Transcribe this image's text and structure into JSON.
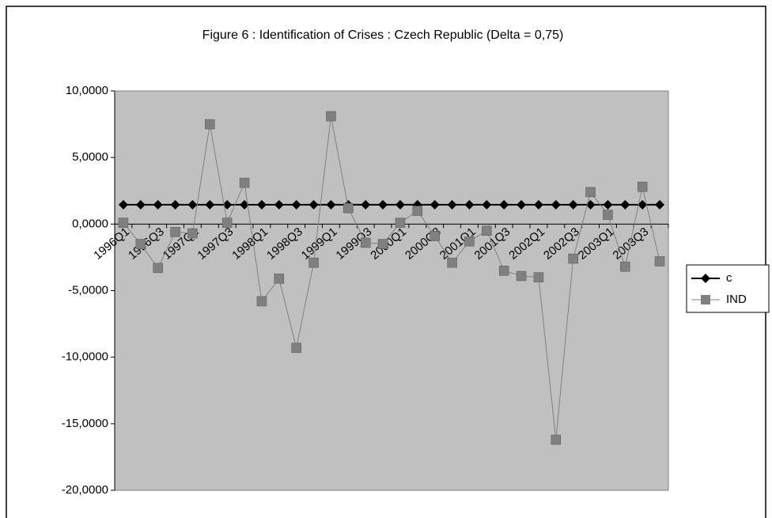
{
  "chart_data": {
    "type": "line",
    "title": "Figure 6 : Identification of Crises : Czech Republic (Delta = 0,75)",
    "categories": [
      "1996Q1",
      null,
      "1996Q3",
      null,
      "1997Q1",
      null,
      "1997Q3",
      null,
      "1998Q1",
      null,
      "1998Q3",
      null,
      "1999Q1",
      null,
      "1999Q3",
      null,
      "2000Q1",
      null,
      "2000Q3",
      null,
      "2001Q1",
      null,
      "2001Q3",
      null,
      "2002Q1",
      null,
      "2002Q3",
      null,
      "2003Q1",
      null,
      "2003Q3",
      null
    ],
    "series": [
      {
        "name": "c",
        "color": "#000000",
        "marker": "diamond",
        "values": [
          1.45,
          1.45,
          1.45,
          1.45,
          1.45,
          1.45,
          1.45,
          1.45,
          1.45,
          1.45,
          1.45,
          1.45,
          1.45,
          1.45,
          1.45,
          1.45,
          1.45,
          1.45,
          1.45,
          1.45,
          1.45,
          1.45,
          1.45,
          1.45,
          1.45,
          1.45,
          1.45,
          1.45,
          1.45,
          1.45,
          1.45,
          1.45
        ]
      },
      {
        "name": "IND",
        "color": "#808080",
        "marker": "square",
        "values": [
          0.1,
          -1.5,
          -3.3,
          -0.6,
          -0.7,
          7.5,
          0.1,
          3.1,
          -5.8,
          -4.1,
          -9.3,
          -2.9,
          8.1,
          1.2,
          -1.4,
          -1.5,
          0.1,
          1.0,
          -0.9,
          -2.9,
          -1.3,
          -0.5,
          -3.5,
          -3.9,
          -4.0,
          -16.2,
          -2.6,
          2.4,
          0.7,
          -3.2,
          2.8,
          -2.8
        ]
      }
    ],
    "ylim": [
      -20,
      10
    ],
    "yticks": [
      {
        "value": -20,
        "label": "-20,0000"
      },
      {
        "value": -15,
        "label": "-15,0000"
      },
      {
        "value": -10,
        "label": "-10,0000"
      },
      {
        "value": -5,
        "label": "-5,0000"
      },
      {
        "value": 0,
        "label": "0,0000"
      },
      {
        "value": 5,
        "label": "5,0000"
      },
      {
        "value": 10,
        "label": "10,0000"
      }
    ],
    "grid": false,
    "plot_background": "#c0c0c0",
    "legend_position": "right"
  }
}
